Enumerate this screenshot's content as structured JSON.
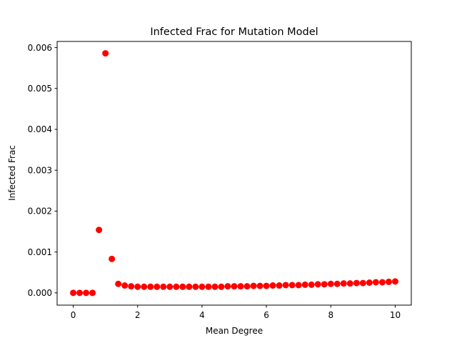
{
  "chart_data": {
    "type": "scatter",
    "title": "Infected Frac for Mutation Model",
    "xlabel": "Mean Degree",
    "ylabel": "Infected Frac",
    "xlim": [
      -0.5,
      10.5
    ],
    "ylim": [
      -0.0003,
      0.00615
    ],
    "xticks": [
      0,
      2,
      4,
      6,
      8,
      10
    ],
    "xtick_labels": [
      "0",
      "2",
      "4",
      "6",
      "8",
      "10"
    ],
    "yticks": [
      0,
      0.001,
      0.002,
      0.003,
      0.004,
      0.005,
      0.006
    ],
    "ytick_labels": [
      "0.000",
      "0.001",
      "0.002",
      "0.003",
      "0.004",
      "0.005",
      "0.006"
    ],
    "grid": false,
    "legend": "none",
    "marker_color": "#ff0000",
    "series": [
      {
        "x": [
          0.0,
          0.2,
          0.4,
          0.6,
          0.8,
          1.0,
          1.2,
          1.4,
          1.6,
          1.8,
          2.0,
          2.2,
          2.4,
          2.6,
          2.8,
          3.0,
          3.2,
          3.4,
          3.6,
          3.8,
          4.0,
          4.2,
          4.4,
          4.6,
          4.8,
          5.0,
          5.2,
          5.4,
          5.6,
          5.8,
          6.0,
          6.2,
          6.4,
          6.6,
          6.8,
          7.0,
          7.2,
          7.4,
          7.6,
          7.8,
          8.0,
          8.2,
          8.4,
          8.6,
          8.8,
          9.0,
          9.2,
          9.4,
          9.6,
          9.8,
          10.0
        ],
        "y": [
          0.0,
          0.0,
          0.0,
          0.0,
          0.00154,
          0.00586,
          0.00083,
          0.00022,
          0.00018,
          0.00016,
          0.00015,
          0.00015,
          0.00015,
          0.00015,
          0.00015,
          0.00015,
          0.00015,
          0.00015,
          0.00015,
          0.00015,
          0.00015,
          0.00015,
          0.00015,
          0.00015,
          0.00016,
          0.00016,
          0.00016,
          0.00016,
          0.00017,
          0.00017,
          0.00017,
          0.00018,
          0.00018,
          0.00019,
          0.00019,
          0.00019,
          0.0002,
          0.0002,
          0.00021,
          0.00021,
          0.00022,
          0.00022,
          0.00023,
          0.00023,
          0.00024,
          0.00024,
          0.00025,
          0.00026,
          0.00026,
          0.00027,
          0.00028
        ]
      }
    ]
  }
}
